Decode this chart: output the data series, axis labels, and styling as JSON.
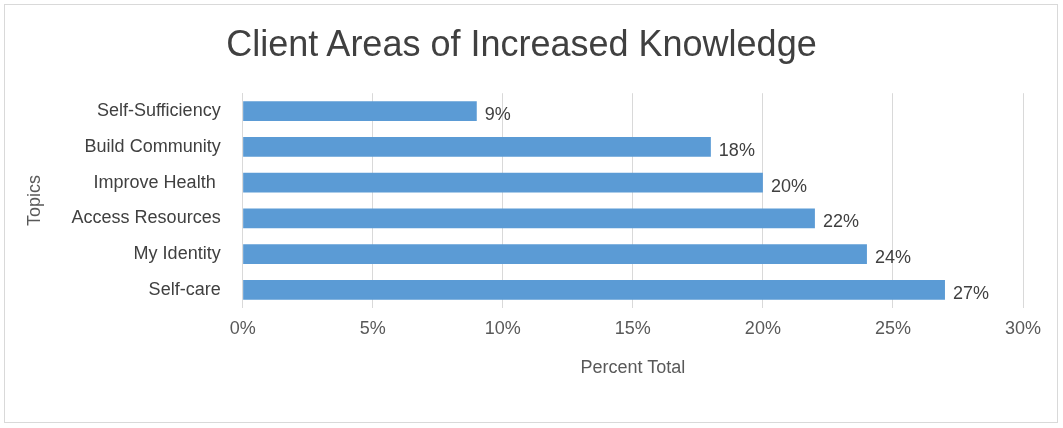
{
  "chart_data": {
    "type": "bar",
    "orientation": "horizontal",
    "title": "Client Areas of Increased Knowledge",
    "xlabel": "Percent Total",
    "ylabel": "Topics",
    "categories": [
      "Self-Sufficiency",
      "Build Community",
      "Improve Health ",
      "Access Resources",
      "My Identity",
      "Self-care"
    ],
    "values": [
      9,
      18,
      20,
      22,
      24,
      27
    ],
    "color": "#5b9bd5",
    "value_labels": [
      "9%",
      "18%",
      "20%",
      "22%",
      "24%",
      "27%"
    ],
    "xlim": [
      0,
      30
    ],
    "xticks": [
      {
        "value": 0,
        "label": "0%"
      },
      {
        "value": 5,
        "label": "5%"
      },
      {
        "value": 10,
        "label": "10%"
      },
      {
        "value": 15,
        "label": "15%"
      },
      {
        "value": 20,
        "label": "20%"
      },
      {
        "value": 25,
        "label": "25%"
      },
      {
        "value": 30,
        "label": "30%"
      }
    ],
    "grid": "x",
    "legend": false
  }
}
